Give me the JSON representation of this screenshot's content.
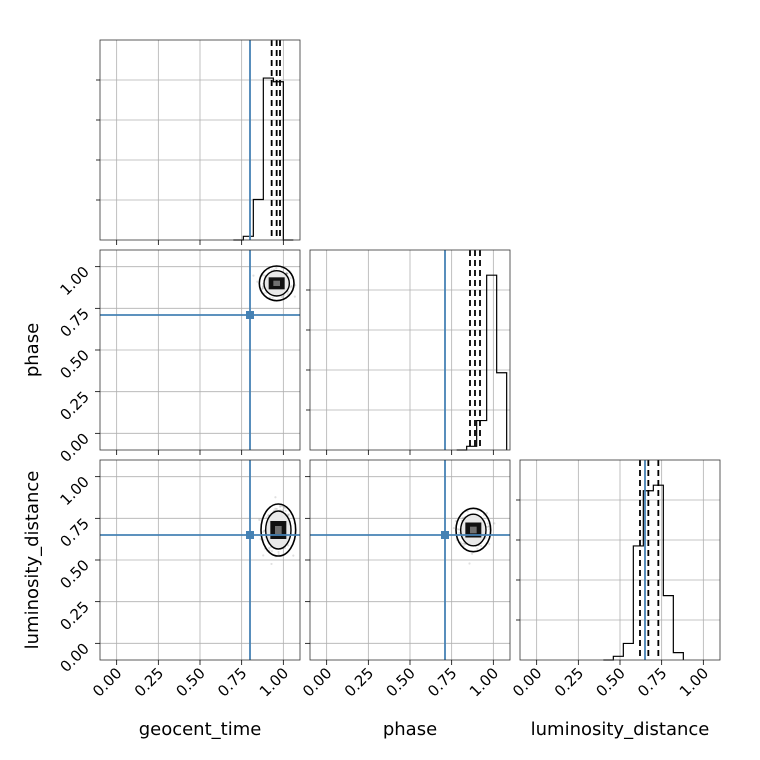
{
  "chart_data": {
    "type": "corner",
    "parameters": [
      "geocent_time",
      "phase",
      "luminosity_distance"
    ],
    "range": [
      -0.1,
      1.1
    ],
    "ticks": [
      0.0,
      0.25,
      0.5,
      0.75,
      1.0
    ],
    "tick_labels": [
      "0.00",
      "0.25",
      "0.50",
      "0.75",
      "1.00"
    ],
    "truth_color": "#4682b4",
    "truths": {
      "geocent_time": 0.8,
      "phase": 0.71,
      "luminosity_distance": 0.65
    },
    "histograms": [
      {
        "parameter": "geocent_time",
        "bin_edges": [
          0.7,
          0.76,
          0.82,
          0.88,
          0.94,
          1.0,
          1.06
        ],
        "counts": [
          0.0,
          0.02,
          0.22,
          0.88,
          0.86,
          0.0
        ],
        "quantiles": [
          0.93,
          0.96,
          0.98
        ]
      },
      {
        "parameter": "phase",
        "bin_edges": [
          0.78,
          0.84,
          0.9,
          0.96,
          1.02,
          1.08
        ],
        "counts": [
          0.0,
          0.02,
          0.16,
          0.95,
          0.42
        ],
        "quantiles": [
          0.86,
          0.89,
          0.92
        ]
      },
      {
        "parameter": "luminosity_distance",
        "bin_edges": [
          0.4,
          0.46,
          0.52,
          0.58,
          0.64,
          0.7,
          0.76,
          0.82,
          0.88
        ],
        "counts": [
          0.0,
          0.02,
          0.09,
          0.62,
          0.92,
          0.95,
          0.35,
          0.04
        ],
        "quantiles": [
          0.62,
          0.67,
          0.73
        ]
      }
    ],
    "scatter_panels": [
      {
        "x": "geocent_time",
        "y": "phase",
        "center": [
          0.96,
          0.9
        ],
        "spread": [
          0.04,
          0.04
        ]
      },
      {
        "x": "geocent_time",
        "y": "luminosity_distance",
        "center": [
          0.97,
          0.68
        ],
        "spread": [
          0.04,
          0.06
        ]
      },
      {
        "x": "phase",
        "y": "luminosity_distance",
        "center": [
          0.88,
          0.68
        ],
        "spread": [
          0.04,
          0.05
        ]
      }
    ]
  }
}
